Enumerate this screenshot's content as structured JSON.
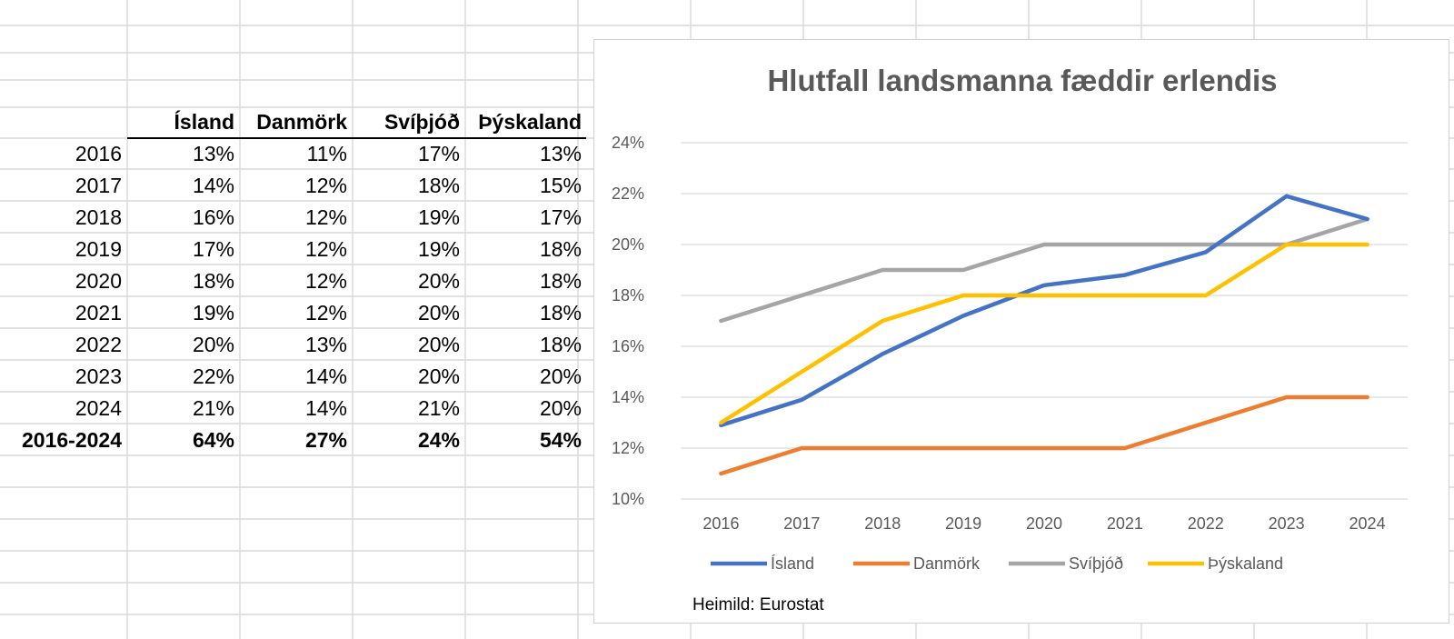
{
  "table": {
    "header": [
      "",
      "Ísland",
      "Danmörk",
      "Svíþjóð",
      "Þýskaland"
    ],
    "rows": [
      [
        "2016",
        "13%",
        "11%",
        "17%",
        "13%"
      ],
      [
        "2017",
        "14%",
        "12%",
        "18%",
        "15%"
      ],
      [
        "2018",
        "16%",
        "12%",
        "19%",
        "17%"
      ],
      [
        "2019",
        "17%",
        "12%",
        "19%",
        "18%"
      ],
      [
        "2020",
        "18%",
        "12%",
        "20%",
        "18%"
      ],
      [
        "2021",
        "19%",
        "12%",
        "20%",
        "18%"
      ],
      [
        "2022",
        "20%",
        "13%",
        "20%",
        "18%"
      ],
      [
        "2023",
        "22%",
        "14%",
        "20%",
        "20%"
      ],
      [
        "2024",
        "21%",
        "14%",
        "21%",
        "20%"
      ]
    ],
    "total_row": [
      "2016-2024",
      "64%",
      "27%",
      "24%",
      "54%"
    ]
  },
  "chart_data": {
    "type": "line",
    "title": "Hlutfall landsmanna fæddir erlendis",
    "x": [
      "2016",
      "2017",
      "2018",
      "2019",
      "2020",
      "2021",
      "2022",
      "2023",
      "2024"
    ],
    "ylim": [
      0.1,
      0.24
    ],
    "yticks": [
      "10%",
      "12%",
      "14%",
      "16%",
      "18%",
      "20%",
      "22%",
      "24%"
    ],
    "grid": true,
    "legend_position": "bottom",
    "series": [
      {
        "name": "Ísland",
        "color": "#4472C4",
        "values": [
          0.129,
          0.139,
          0.157,
          0.172,
          0.184,
          0.188,
          0.197,
          0.219,
          0.21
        ]
      },
      {
        "name": "Danmörk",
        "color": "#ED7D31",
        "values": [
          0.11,
          0.12,
          0.12,
          0.12,
          0.12,
          0.12,
          0.13,
          0.14,
          0.14
        ]
      },
      {
        "name": "Svíþjóð",
        "color": "#A5A5A5",
        "values": [
          0.17,
          0.18,
          0.19,
          0.19,
          0.2,
          0.2,
          0.2,
          0.2,
          0.21
        ]
      },
      {
        "name": "Þýskaland",
        "color": "#FFC000",
        "values": [
          0.13,
          0.15,
          0.17,
          0.18,
          0.18,
          0.18,
          0.18,
          0.2,
          0.2
        ]
      }
    ],
    "source": "Heimild: Eurostat"
  }
}
